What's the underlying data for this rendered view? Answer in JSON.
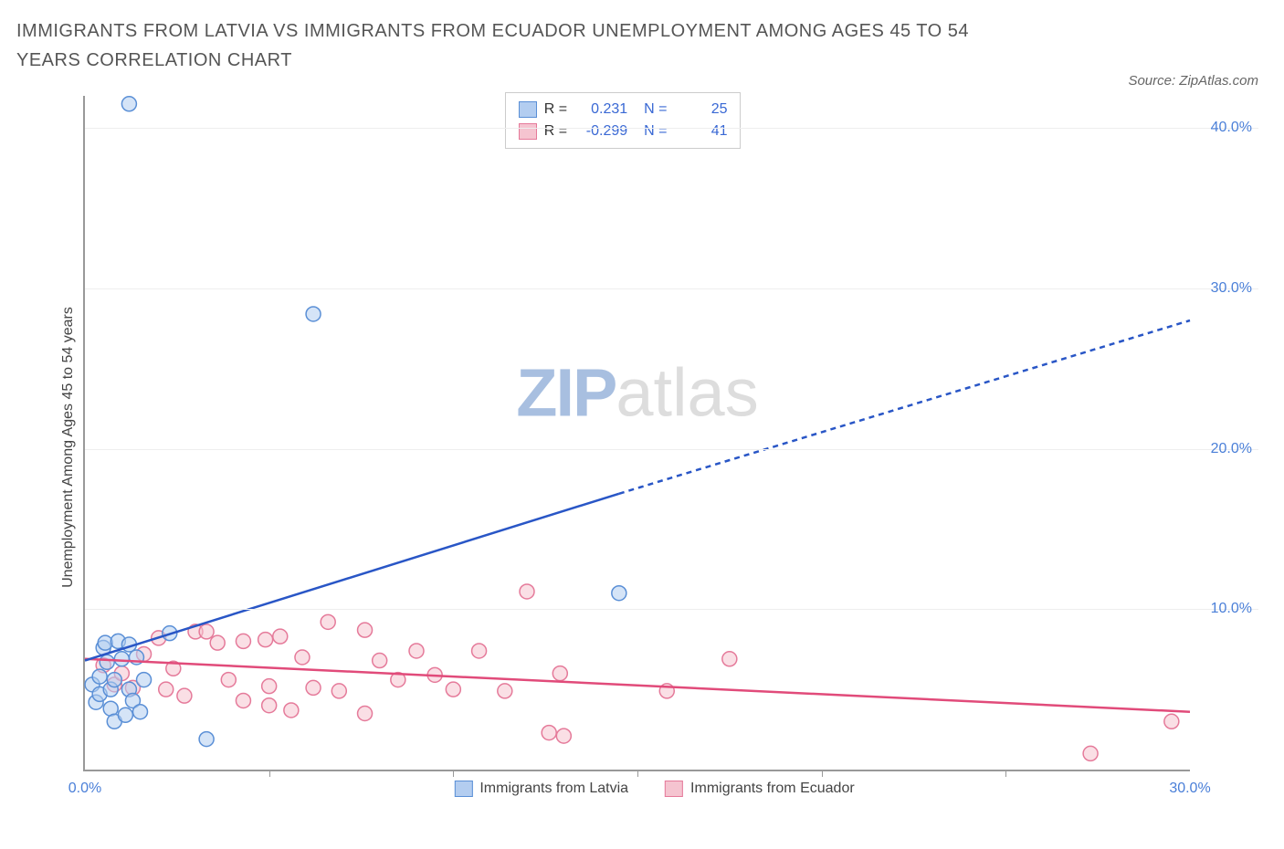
{
  "title": "IMMIGRANTS FROM LATVIA VS IMMIGRANTS FROM ECUADOR UNEMPLOYMENT AMONG AGES 45 TO 54 YEARS CORRELATION CHART",
  "source": "Source: ZipAtlas.com",
  "ylabel": "Unemployment Among Ages 45 to 54 years",
  "watermark_zip": "ZIP",
  "watermark_atlas": "atlas",
  "chart": {
    "type": "scatter",
    "xlim": [
      0,
      30
    ],
    "ylim": [
      0,
      42
    ],
    "xticks": [
      0,
      5,
      10,
      15,
      20,
      25,
      30
    ],
    "xtick_labels_shown": {
      "0": "0.0%",
      "30": "30.0%"
    },
    "yticks": [
      10,
      20,
      30,
      40
    ],
    "ytick_labels": {
      "10": "10.0%",
      "20": "20.0%",
      "30": "30.0%",
      "40": "40.0%"
    },
    "background_color": "#ffffff",
    "grid_color": "#eeeeee",
    "axis_color": "#999999",
    "marker_radius": 8,
    "marker_stroke_width": 1.5,
    "line_width": 2.5,
    "dash_pattern": "6,5"
  },
  "series": {
    "latvia": {
      "label": "Immigrants from Latvia",
      "fill": "#b3cdf0",
      "stroke": "#5a8fd6",
      "fill_opacity": 0.55,
      "r_value": "0.231",
      "n_value": "25",
      "regression": {
        "x1": 0,
        "y1": 6.8,
        "x2": 14.5,
        "y2": 17.2,
        "x2_dash": 30,
        "y2_dash": 28.0,
        "color": "#2956c6"
      },
      "points": [
        [
          0.2,
          5.3
        ],
        [
          0.3,
          4.2
        ],
        [
          0.4,
          5.8
        ],
        [
          0.4,
          4.7
        ],
        [
          0.5,
          7.6
        ],
        [
          0.55,
          7.9
        ],
        [
          0.6,
          6.7
        ],
        [
          0.7,
          3.8
        ],
        [
          0.7,
          5.0
        ],
        [
          0.8,
          3.0
        ],
        [
          0.8,
          5.6
        ],
        [
          0.9,
          8.0
        ],
        [
          1.0,
          6.9
        ],
        [
          1.1,
          3.4
        ],
        [
          1.2,
          5.0
        ],
        [
          1.2,
          7.8
        ],
        [
          1.3,
          4.3
        ],
        [
          1.4,
          7.0
        ],
        [
          1.5,
          3.6
        ],
        [
          1.6,
          5.6
        ],
        [
          1.2,
          41.5
        ],
        [
          2.3,
          8.5
        ],
        [
          3.3,
          1.9
        ],
        [
          6.2,
          28.4
        ],
        [
          14.5,
          11.0
        ]
      ]
    },
    "ecuador": {
      "label": "Immigrants from Ecuador",
      "fill": "#f5c4d0",
      "stroke": "#e57a9a",
      "fill_opacity": 0.55,
      "r_value": "-0.299",
      "n_value": "41",
      "regression": {
        "x1": 0,
        "y1": 6.9,
        "x2": 30,
        "y2": 3.6,
        "color": "#e14b7a"
      },
      "points": [
        [
          0.5,
          6.5
        ],
        [
          0.8,
          5.3
        ],
        [
          1.0,
          6.0
        ],
        [
          1.3,
          5.1
        ],
        [
          1.6,
          7.2
        ],
        [
          2.0,
          8.2
        ],
        [
          2.2,
          5.0
        ],
        [
          2.4,
          6.3
        ],
        [
          2.7,
          4.6
        ],
        [
          3.0,
          8.6
        ],
        [
          3.3,
          8.6
        ],
        [
          3.6,
          7.9
        ],
        [
          3.9,
          5.6
        ],
        [
          4.3,
          4.3
        ],
        [
          4.3,
          8.0
        ],
        [
          4.9,
          8.1
        ],
        [
          5.0,
          4.0
        ],
        [
          5.0,
          5.2
        ],
        [
          5.3,
          8.3
        ],
        [
          5.6,
          3.7
        ],
        [
          5.9,
          7.0
        ],
        [
          6.2,
          5.1
        ],
        [
          6.6,
          9.2
        ],
        [
          6.9,
          4.9
        ],
        [
          7.6,
          8.7
        ],
        [
          7.6,
          3.5
        ],
        [
          8.0,
          6.8
        ],
        [
          8.5,
          5.6
        ],
        [
          9.0,
          7.4
        ],
        [
          9.5,
          5.9
        ],
        [
          10.0,
          5.0
        ],
        [
          10.7,
          7.4
        ],
        [
          11.4,
          4.9
        ],
        [
          12.0,
          11.1
        ],
        [
          12.6,
          2.3
        ],
        [
          12.9,
          6.0
        ],
        [
          13.0,
          2.1
        ],
        [
          15.8,
          4.9
        ],
        [
          17.5,
          6.9
        ],
        [
          27.3,
          1.0
        ],
        [
          29.5,
          3.0
        ]
      ]
    }
  },
  "stats_legend": {
    "r_label": "R =",
    "n_label": "N ="
  },
  "colors": {
    "title": "#555555",
    "tick_label": "#4a7fd8",
    "stat_value": "#3968d4"
  }
}
